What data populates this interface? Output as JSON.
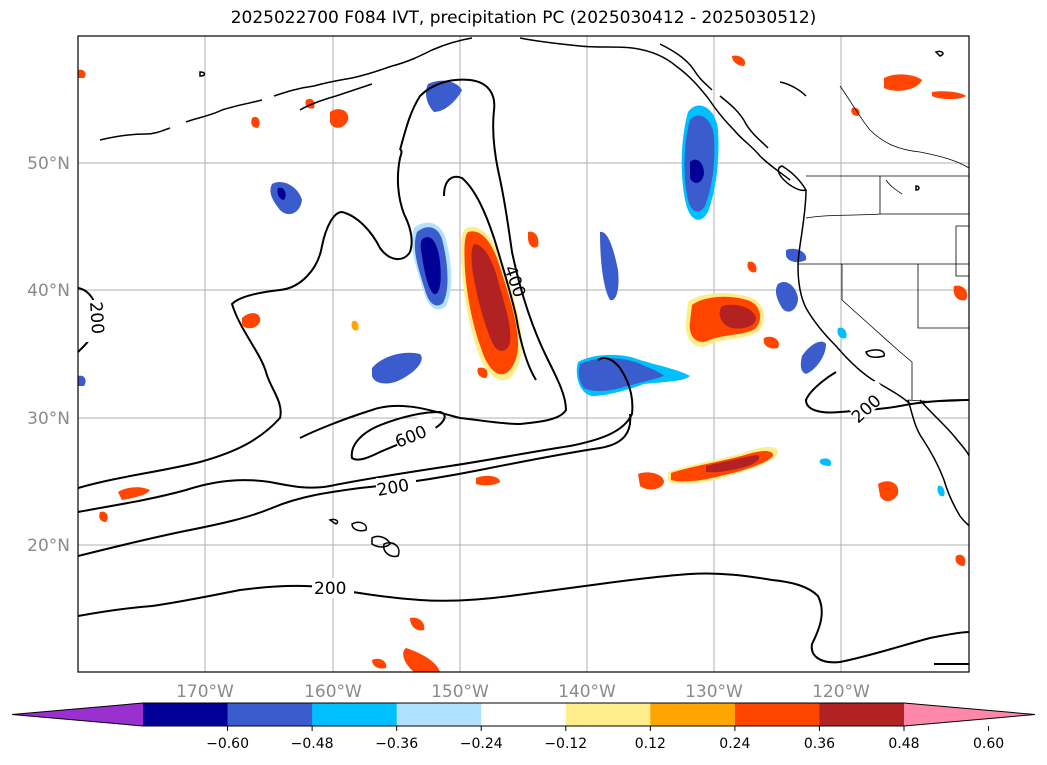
{
  "title": "2025022700 F084 IVT, precipitation PC (2025030412 - 2025030512)",
  "map": {
    "lon_labels": [
      "170°W",
      "160°W",
      "150°W",
      "140°W",
      "130°W",
      "120°W"
    ],
    "lat_labels": [
      "50°N",
      "40°N",
      "30°N",
      "20°N"
    ],
    "ivt_contour_labels": [
      "200",
      "400",
      "600",
      "200",
      "200",
      "200"
    ],
    "grid": true
  },
  "colorbar": {
    "ticks": [
      "−0.60",
      "−0.48",
      "−0.36",
      "−0.24",
      "−0.12",
      "0.12",
      "0.24",
      "0.36",
      "0.48",
      "0.60"
    ],
    "colors": [
      "#9b30d0",
      "#000096",
      "#3b5ccc",
      "#00bfff",
      "#b0e2ff",
      "#ffffff",
      "#ffec8b",
      "#ffa500",
      "#ff4500",
      "#b22222",
      "#ff88aa"
    ],
    "extend": "both"
  }
}
